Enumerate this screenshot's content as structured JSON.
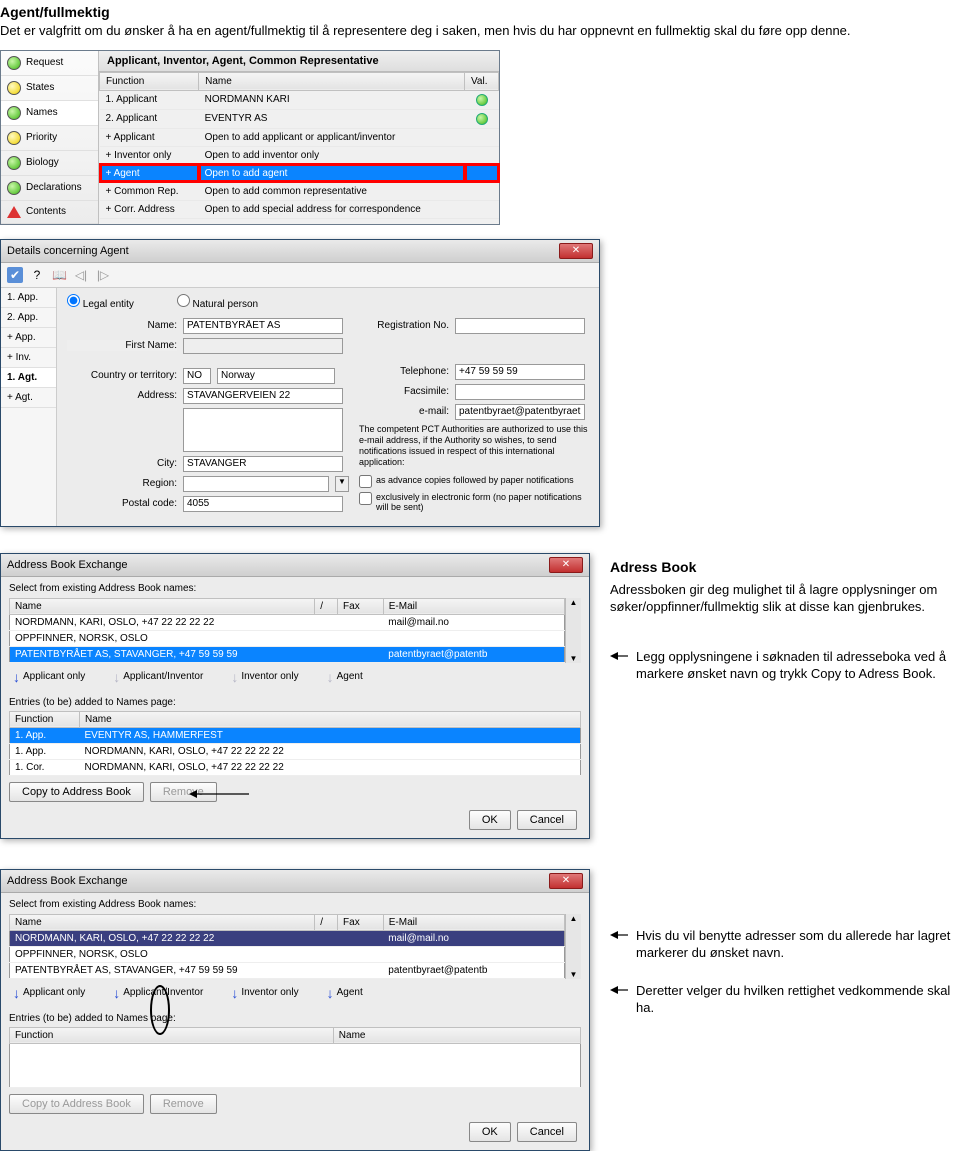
{
  "intro": {
    "title": "Agent/fullmektig",
    "body": "Det er valgfritt om du ønsker å ha en agent/fullmektig til å representere deg i saken, men hvis du har oppnevnt en fullmektig skal du føre opp denne."
  },
  "sidebar": [
    {
      "label": "Request",
      "dot": "green"
    },
    {
      "label": "States",
      "dot": "yellow"
    },
    {
      "label": "Names",
      "dot": "green",
      "active": true
    },
    {
      "label": "Priority",
      "dot": "yellow"
    },
    {
      "label": "Biology",
      "dot": "green"
    },
    {
      "label": "Declarations",
      "dot": "green"
    },
    {
      "label": "Contents",
      "dot": "red"
    }
  ],
  "names_header": "Applicant, Inventor, Agent, Common Representative",
  "names_cols": [
    "Function",
    "Name",
    "Val."
  ],
  "names_rows": [
    {
      "f": "1. Applicant",
      "n": "NORDMANN KARI",
      "v": "green"
    },
    {
      "f": "2. Applicant",
      "n": "EVENTYR AS",
      "v": "green"
    },
    {
      "f": "+ Applicant",
      "n": "Open to add applicant or applicant/inventor",
      "v": ""
    },
    {
      "f": "+ Inventor only",
      "n": "Open to add inventor only",
      "v": ""
    },
    {
      "f": "+ Agent",
      "n": "Open to add agent",
      "v": "",
      "hl": true,
      "red": true
    },
    {
      "f": "+ Common Rep.",
      "n": "Open to add common representative",
      "v": ""
    },
    {
      "f": "+ Corr. Address",
      "n": "Open to add special address for correspondence",
      "v": ""
    }
  ],
  "details": {
    "title": "Details concerning Agent",
    "tabs": [
      "1. App.",
      "2. App.",
      "+ App.",
      "+ Inv.",
      "1. Agt.",
      "+ Agt."
    ],
    "active_tab": 4,
    "legal": "Legal entity",
    "natural": "Natural person",
    "name_lbl": "Name:",
    "name": "PATENTBYRÅET AS",
    "firstname_lbl": "First Name:",
    "regno_lbl": "Registration No.",
    "country_lbl": "Country or territory:",
    "country_code": "NO",
    "country": "Norway",
    "tel_lbl": "Telephone:",
    "tel": "+47 59 59 59",
    "addr_lbl": "Address:",
    "addr": "STAVANGERVEIEN 22",
    "fax_lbl": "Facsimile:",
    "email_lbl": "e-mail:",
    "email": "patentbyraet@patentbyraet.no",
    "auth_note": "The competent PCT Authorities are authorized to use this e-mail address, if the Authority so wishes, to send notifications issued in respect of this international application:",
    "city_lbl": "City:",
    "city": "STAVANGER",
    "region_lbl": "Region:",
    "postal_lbl": "Postal code:",
    "postal": "4055",
    "cb1": "as advance copies followed by paper notifications",
    "cb2": "exclusively in electronic form (no paper notifications will be sent)"
  },
  "abx_title": "Adress Book",
  "abx_intro": "Adressboken gir deg mulighet til å lagre opplysninger om søker/oppfinner/fullmektig slik at disse kan gjenbrukes.",
  "abx_dialog_title": "Address Book Exchange",
  "abx_select_lbl": "Select from existing Address Book names:",
  "abx_cols": [
    "Name",
    "/",
    "Fax",
    "E-Mail"
  ],
  "abx1_rows": [
    {
      "n": "NORDMANN, KARI, OSLO, +47 22 22 22 22",
      "s": "",
      "f": "",
      "e": "mail@mail.no"
    },
    {
      "n": "OPPFINNER, NORSK, OSLO",
      "s": "",
      "f": "",
      "e": ""
    },
    {
      "n": "PATENTBYRÅET AS, STAVANGER, +47 59 59 59",
      "s": "",
      "f": "",
      "e": "patentbyraet@patentb",
      "sel": true
    }
  ],
  "arrows": [
    "Applicant only",
    "Applicant/Inventor",
    "Inventor only",
    "Agent"
  ],
  "entries_lbl": "Entries (to be) added to Names page:",
  "entries_cols": [
    "Function",
    "Name"
  ],
  "entries_rows": [
    {
      "f": "1. App.",
      "n": "EVENTYR AS, HAMMERFEST",
      "sel": true
    },
    {
      "f": "1. App.",
      "n": "NORDMANN, KARI, OSLO, +47 22 22 22 22"
    },
    {
      "f": "1. Cor.",
      "n": "NORDMANN, KARI, OSLO, +47 22 22 22 22"
    }
  ],
  "copy_btn": "Copy to Address Book",
  "remove_btn": "Remove",
  "ok_btn": "OK",
  "cancel_btn": "Cancel",
  "annot1": "Legg opplysningene i søknaden til adresseboka ved å markere ønsket navn og trykk Copy to Adress Book.",
  "abx2_rows": [
    {
      "n": "NORDMANN, KARI, OSLO, +47 22 22 22 22",
      "s": "",
      "f": "",
      "e": "mail@mail.no",
      "sel": true
    },
    {
      "n": "OPPFINNER, NORSK, OSLO",
      "s": "",
      "f": "",
      "e": ""
    },
    {
      "n": "PATENTBYRÅET AS, STAVANGER, +47 59 59 59",
      "s": "",
      "f": "",
      "e": "patentbyraet@patentb"
    }
  ],
  "annot2": "Hvis du vil benytte adresser som du allerede har lagret markerer du ønsket navn.",
  "annot3": "Deretter velger du hvilken rettighet vedkommende skal ha."
}
